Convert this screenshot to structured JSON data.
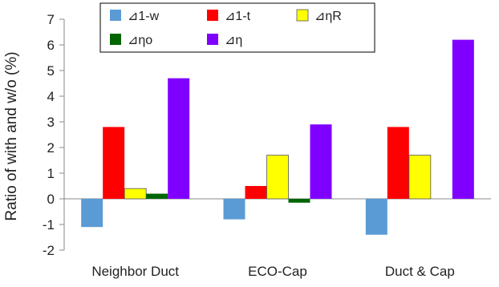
{
  "chart_data": {
    "type": "bar",
    "categories": [
      "Neighbor Duct",
      "ECO-Cap",
      "Duct & Cap"
    ],
    "series": [
      {
        "name": "⊿1-w",
        "color": "#5b9bd5",
        "values": [
          -1.1,
          -0.8,
          -1.4
        ]
      },
      {
        "name": "⊿1-t",
        "color": "#ff0000",
        "values": [
          2.8,
          0.5,
          2.8
        ]
      },
      {
        "name": "⊿ηR",
        "color": "#ffff00",
        "values": [
          0.4,
          1.7,
          1.7
        ]
      },
      {
        "name": "⊿ηo",
        "color": "#006400",
        "values": [
          0.2,
          -0.15,
          0.0
        ]
      },
      {
        "name": "⊿η",
        "color": "#8000ff",
        "values": [
          4.7,
          2.9,
          6.2
        ]
      }
    ],
    "xlabel": "",
    "ylabel": "Ratio of with and w/o (%)",
    "ylim": [
      -2,
      7
    ],
    "yticks": [
      -2,
      -1,
      0,
      1,
      2,
      3,
      4,
      5,
      6,
      7
    ],
    "grid": false,
    "legend_position": "top"
  }
}
